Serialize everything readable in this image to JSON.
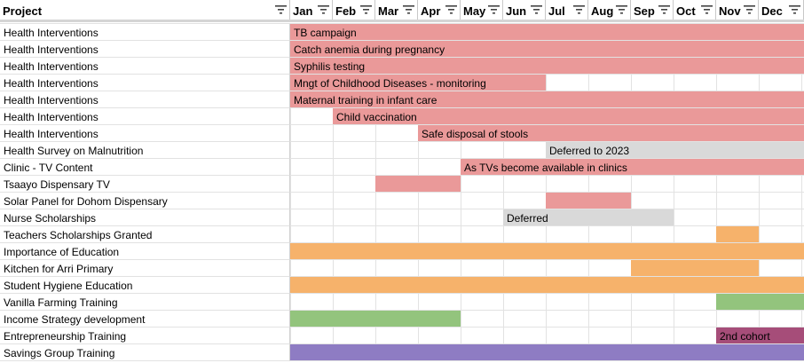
{
  "colors": {
    "health": "#ea9999",
    "deferred": "#d9d9d9",
    "education": "#f6b26b",
    "farming": "#93c47d",
    "cohort": "#a64d79",
    "savings": "#8e7cc3"
  },
  "header": {
    "project_label": "Project",
    "months": [
      "Jan",
      "Feb",
      "Mar",
      "Apr",
      "May",
      "Jun",
      "Jul",
      "Aug",
      "Sep",
      "Oct",
      "Nov",
      "Dec"
    ]
  },
  "rows": [
    {
      "project": "Health Interventions",
      "bars": [
        {
          "start": 0,
          "end": 12,
          "color": "health",
          "label": "TB campaign"
        }
      ]
    },
    {
      "project": "Health Interventions",
      "bars": [
        {
          "start": 0,
          "end": 12,
          "color": "health",
          "label": "Catch anemia during pregnancy"
        }
      ]
    },
    {
      "project": "Health Interventions",
      "bars": [
        {
          "start": 0,
          "end": 12,
          "color": "health",
          "label": "Syphilis testing"
        }
      ]
    },
    {
      "project": "Health Interventions",
      "bars": [
        {
          "start": 0,
          "end": 6,
          "color": "health",
          "label": "Mngt of Childhood Diseases - monitoring"
        }
      ]
    },
    {
      "project": "Health Interventions",
      "bars": [
        {
          "start": 0,
          "end": 12,
          "color": "health",
          "label": "Maternal training in infant care"
        }
      ]
    },
    {
      "project": "Health Interventions",
      "bars": [
        {
          "start": 1,
          "end": 12,
          "color": "health",
          "label": "Child vaccination"
        }
      ]
    },
    {
      "project": "Health Interventions",
      "bars": [
        {
          "start": 3,
          "end": 12,
          "color": "health",
          "label": "Safe disposal of stools"
        }
      ]
    },
    {
      "project": "Health Survey on Malnutrition",
      "bars": [
        {
          "start": 6,
          "end": 12,
          "color": "deferred",
          "label": "Deferred to 2023"
        }
      ]
    },
    {
      "project": "Clinic - TV Content",
      "bars": [
        {
          "start": 4,
          "end": 12,
          "color": "health",
          "label": "As TVs become available in clinics"
        }
      ]
    },
    {
      "project": "Tsaayo Dispensary TV",
      "bars": [
        {
          "start": 2,
          "end": 4,
          "color": "health",
          "label": ""
        }
      ]
    },
    {
      "project": "Solar Panel for Dohom Dispensary",
      "bars": [
        {
          "start": 6,
          "end": 8,
          "color": "health",
          "label": ""
        }
      ]
    },
    {
      "project": "Nurse Scholarships",
      "bars": [
        {
          "start": 5,
          "end": 9,
          "color": "deferred",
          "label": "Deferred"
        }
      ]
    },
    {
      "project": "Teachers Scholarships Granted",
      "bars": [
        {
          "start": 10,
          "end": 11,
          "color": "education",
          "label": ""
        }
      ]
    },
    {
      "project": "Importance of Education",
      "bars": [
        {
          "start": 0,
          "end": 12,
          "color": "education",
          "label": ""
        }
      ]
    },
    {
      "project": "Kitchen for Arri Primary",
      "bars": [
        {
          "start": 8,
          "end": 11,
          "color": "education",
          "label": ""
        }
      ]
    },
    {
      "project": "Student Hygiene Education",
      "bars": [
        {
          "start": 0,
          "end": 12,
          "color": "education",
          "label": ""
        }
      ]
    },
    {
      "project": "Vanilla Farming Training",
      "bars": [
        {
          "start": 10,
          "end": 12,
          "color": "farming",
          "label": ""
        }
      ]
    },
    {
      "project": "Income Strategy development",
      "bars": [
        {
          "start": 0,
          "end": 4,
          "color": "farming",
          "label": ""
        }
      ]
    },
    {
      "project": "Entrepreneurship Training",
      "bars": [
        {
          "start": 10,
          "end": 12,
          "color": "cohort",
          "label": "2nd cohort"
        }
      ]
    },
    {
      "project": "Savings Group Training",
      "bars": [
        {
          "start": 0,
          "end": 12,
          "color": "savings",
          "label": ""
        }
      ]
    }
  ]
}
